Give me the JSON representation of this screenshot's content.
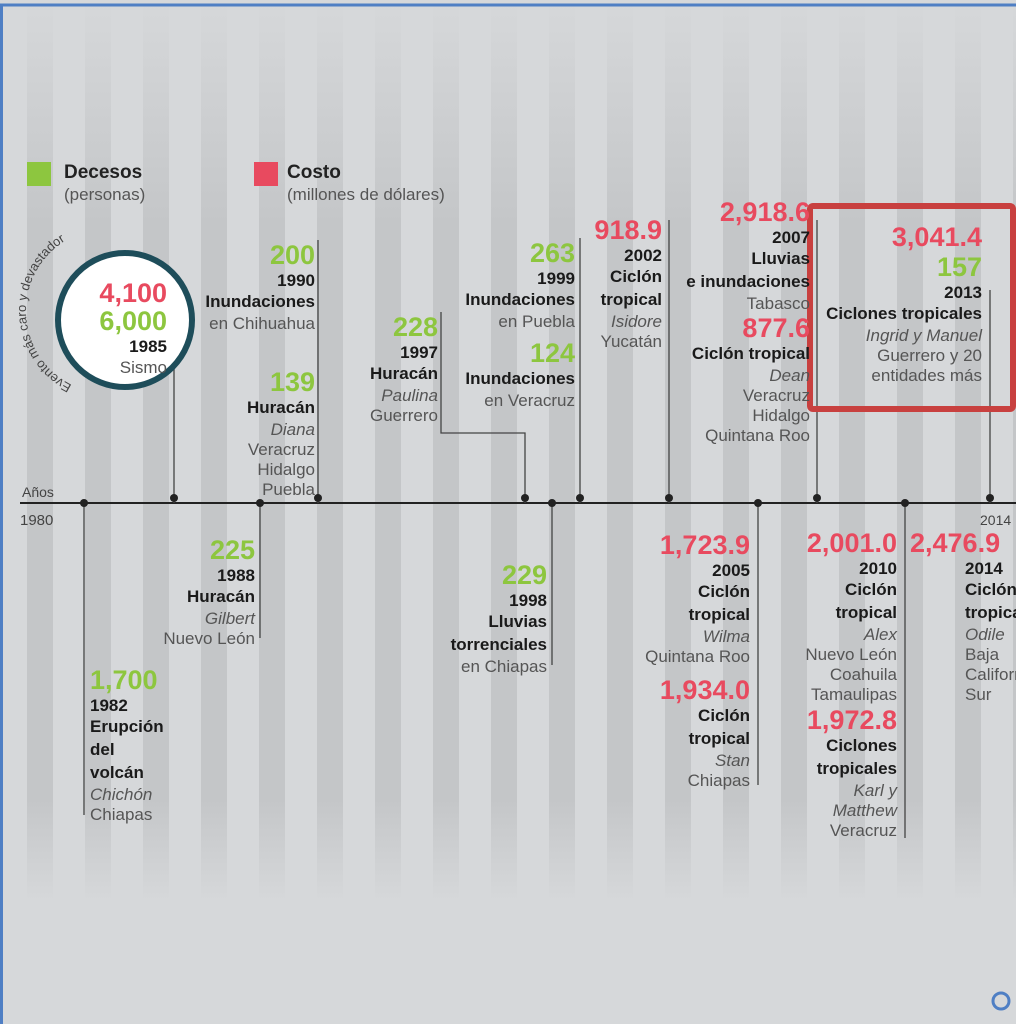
{
  "legend": [
    {
      "title": "Decesos",
      "subtitle": "(personas)"
    },
    {
      "title": "Costo",
      "subtitle": "(millones de dólares)"
    }
  ],
  "axis": {
    "label": "Años",
    "start": "1980",
    "end": "2014"
  },
  "featured": {
    "arc": "Evento más caro y devastador",
    "cost": "4,100",
    "deaths": "6,000",
    "year": "1985",
    "event": "Sismo"
  },
  "events": [
    {
      "deaths": "1,700",
      "year": "1982",
      "name": [
        "Erupción",
        "del",
        "volcán"
      ],
      "named": [
        "Chichón"
      ],
      "places": [
        "Chiapas"
      ]
    },
    {
      "deaths": "225",
      "year": "1988",
      "name": [
        "Huracán"
      ],
      "named": [
        "Gilbert"
      ],
      "places": [
        "Nuevo León"
      ]
    },
    {
      "deaths": "200",
      "year": "1990",
      "name": [
        "Inundaciones"
      ],
      "places": [
        "en Chihuahua"
      ]
    },
    {
      "deaths": "139",
      "name": [
        "Huracán"
      ],
      "named": [
        "Diana"
      ],
      "places": [
        "Veracruz",
        "Hidalgo",
        "Puebla"
      ]
    },
    {
      "deaths": "228",
      "year": "1997",
      "name": [
        "Huracán"
      ],
      "named": [
        "Paulina"
      ],
      "places": [
        "Guerrero"
      ]
    },
    {
      "deaths": "263",
      "year": "1999",
      "name": [
        "Inundaciones"
      ],
      "places": [
        "en Puebla"
      ]
    },
    {
      "deaths": "124",
      "name": [
        "Inundaciones"
      ],
      "places": [
        "en Veracruz"
      ]
    },
    {
      "deaths": "229",
      "year": "1998",
      "name": [
        "Lluvias",
        "torrenciales"
      ],
      "places": [
        "en Chiapas"
      ]
    },
    {
      "cost": "918.9",
      "year": "2002",
      "name": [
        "Ciclón",
        "tropical"
      ],
      "named": [
        "Isidore"
      ],
      "places": [
        "Yucatán"
      ]
    },
    {
      "cost": "1,723.9",
      "year": "2005",
      "name": [
        "Ciclón",
        "tropical"
      ],
      "named": [
        "Wilma"
      ],
      "places": [
        "Quintana Roo"
      ]
    },
    {
      "cost": "1,934.0",
      "name": [
        "Ciclón",
        "tropical"
      ],
      "named": [
        "Stan"
      ],
      "places": [
        "Chiapas"
      ]
    },
    {
      "cost": "2,918.6",
      "year": "2007",
      "name": [
        "Lluvias",
        "e inundaciones"
      ],
      "places": [
        "Tabasco"
      ]
    },
    {
      "cost": "877.6",
      "name": [
        "Ciclón tropical"
      ],
      "named": [
        "Dean"
      ],
      "places": [
        "Veracruz",
        "Hidalgo",
        "Quintana Roo"
      ]
    },
    {
      "cost": "2,001.0",
      "year": "2010",
      "name": [
        "Ciclón",
        "tropical"
      ],
      "named": [
        "Alex"
      ],
      "places": [
        "Nuevo León",
        "Coahuila",
        "Tamaulipas"
      ]
    },
    {
      "cost": "1,972.8",
      "name": [
        "Ciclones",
        "tropicales"
      ],
      "named": [
        "Karl y",
        "Matthew"
      ],
      "places": [
        "Veracruz"
      ]
    },
    {
      "cost": "3,041.4",
      "deaths": "157",
      "year": "2013",
      "name": [
        "Ciclones tropicales"
      ],
      "named": [
        "Ingrid y Manuel"
      ],
      "places": [
        "Guerrero y 20",
        "entidades más"
      ]
    },
    {
      "cost": "2,476.9",
      "year": "2014",
      "name": [
        "Ciclón",
        "tropical"
      ],
      "named": [
        "Odile"
      ],
      "places": [
        "Baja",
        "California",
        "Sur"
      ]
    }
  ]
}
